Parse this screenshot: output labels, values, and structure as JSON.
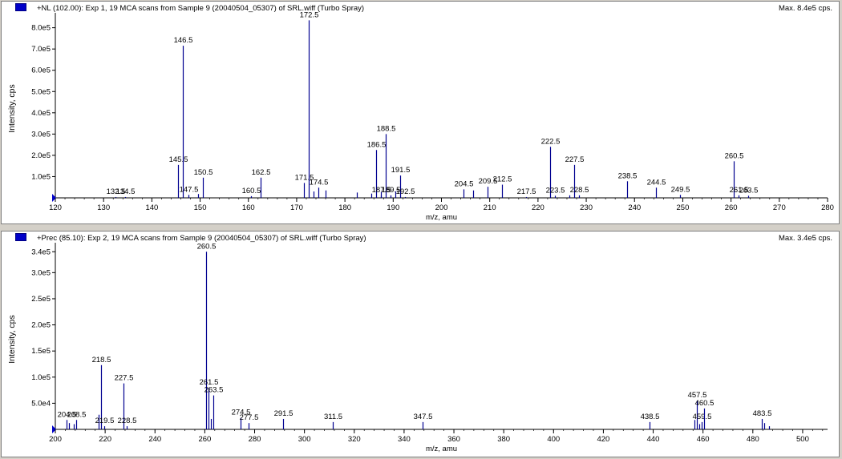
{
  "panels": [
    {
      "title": "+NL (102.00): Exp 1, 19 MCA scans from Sample 9 (20040504_05307) of SRL.wiff (Turbo Spray)",
      "max": "Max. 8.4e5 cps."
    },
    {
      "title": "+Prec (85.10): Exp 2, 19 MCA scans from Sample 9 (20040504_05307) of SRL.wiff (Turbo Spray)",
      "max": "Max. 3.4e5 cps."
    }
  ],
  "colors": {
    "peak": "#000090",
    "axis": "#000000",
    "marker": "#0000c8"
  },
  "chart_data": [
    {
      "type": "bar",
      "xlabel": "m/z, amu",
      "ylabel": "Intensity, cps",
      "xlim": [
        120,
        280
      ],
      "ylim": [
        0,
        840000
      ],
      "xticks": [
        120,
        130,
        140,
        150,
        160,
        170,
        180,
        190,
        200,
        210,
        220,
        230,
        240,
        250,
        260,
        270,
        280
      ],
      "yticks": [
        {
          "value": 100000,
          "label": "1.0e5"
        },
        {
          "value": 200000,
          "label": "2.0e5"
        },
        {
          "value": 300000,
          "label": "3.0e5"
        },
        {
          "value": 400000,
          "label": "4.0e5"
        },
        {
          "value": 500000,
          "label": "5.0e5"
        },
        {
          "value": 600000,
          "label": "6.0e5"
        },
        {
          "value": 700000,
          "label": "7.0e5"
        },
        {
          "value": 800000,
          "label": "8.0e5"
        }
      ],
      "peaks": [
        {
          "x": 132.5,
          "y": 4000,
          "label": "132.5"
        },
        {
          "x": 134.5,
          "y": 4000,
          "label": "134.5"
        },
        {
          "x": 145.5,
          "y": 155000,
          "label": "145.5"
        },
        {
          "x": 146.5,
          "y": 715000,
          "label": "146.5"
        },
        {
          "x": 147.5,
          "y": 14000,
          "label": "147.5"
        },
        {
          "x": 149.5,
          "y": 18000,
          "label": ""
        },
        {
          "x": 150.5,
          "y": 95000,
          "label": "150.5"
        },
        {
          "x": 160.5,
          "y": 8000,
          "label": "160.5"
        },
        {
          "x": 162.5,
          "y": 95000,
          "label": "162.5"
        },
        {
          "x": 171.5,
          "y": 70000,
          "label": "171.5"
        },
        {
          "x": 172.5,
          "y": 835000,
          "label": "172.5"
        },
        {
          "x": 173.5,
          "y": 30000,
          "label": ""
        },
        {
          "x": 174.5,
          "y": 48000,
          "label": "174.5"
        },
        {
          "x": 176.0,
          "y": 35000,
          "label": ""
        },
        {
          "x": 182.5,
          "y": 25000,
          "label": ""
        },
        {
          "x": 185.5,
          "y": 20000,
          "label": ""
        },
        {
          "x": 186.5,
          "y": 225000,
          "label": "186.5"
        },
        {
          "x": 187.5,
          "y": 28000,
          "label": ""
        },
        {
          "x": 188.5,
          "y": 300000,
          "label": "188.5"
        },
        {
          "x": 189.5,
          "y": 12000,
          "label": "189.5"
        },
        {
          "x": 190.5,
          "y": 30000,
          "label": ""
        },
        {
          "x": 191.5,
          "y": 105000,
          "label": "191.5"
        },
        {
          "x": 187.5,
          "y": 12000,
          "label": "187.5"
        },
        {
          "x": 192.5,
          "y": 4000,
          "label": "192.5"
        },
        {
          "x": 204.5,
          "y": 40000,
          "label": "204.5"
        },
        {
          "x": 206.5,
          "y": 35000,
          "label": ""
        },
        {
          "x": 209.5,
          "y": 52000,
          "label": "209.5"
        },
        {
          "x": 212.5,
          "y": 62000,
          "label": "212.5"
        },
        {
          "x": 217.5,
          "y": 4000,
          "label": "217.5"
        },
        {
          "x": 222.5,
          "y": 240000,
          "label": "222.5"
        },
        {
          "x": 223.5,
          "y": 10000,
          "label": "223.5"
        },
        {
          "x": 226.5,
          "y": 12000,
          "label": ""
        },
        {
          "x": 227.5,
          "y": 155000,
          "label": "227.5"
        },
        {
          "x": 228.5,
          "y": 12000,
          "label": "228.5"
        },
        {
          "x": 238.5,
          "y": 78000,
          "label": "238.5"
        },
        {
          "x": 244.5,
          "y": 48000,
          "label": "244.5"
        },
        {
          "x": 249.5,
          "y": 14000,
          "label": "249.5"
        },
        {
          "x": 260.5,
          "y": 172000,
          "label": "260.5"
        },
        {
          "x": 261.5,
          "y": 12000,
          "label": "261.5"
        },
        {
          "x": 263.5,
          "y": 10000,
          "label": "263.5"
        }
      ]
    },
    {
      "type": "bar",
      "xlabel": "m/z, amu",
      "ylabel": "Intensity, cps",
      "xlim": [
        200,
        510
      ],
      "ylim": [
        0,
        345000
      ],
      "xticks": [
        200,
        220,
        240,
        260,
        280,
        300,
        320,
        340,
        360,
        380,
        400,
        420,
        440,
        460,
        480,
        500
      ],
      "yticks": [
        {
          "value": 50000,
          "label": "5.0e4"
        },
        {
          "value": 100000,
          "label": "1.0e5"
        },
        {
          "value": 150000,
          "label": "1.5e5"
        },
        {
          "value": 200000,
          "label": "2.0e5"
        },
        {
          "value": 250000,
          "label": "2.5e5"
        },
        {
          "value": 300000,
          "label": "3.0e5"
        },
        {
          "value": 340000,
          "label": "3.4e5"
        }
      ],
      "peaks": [
        {
          "x": 204.5,
          "y": 18000,
          "label": "204.5"
        },
        {
          "x": 205.5,
          "y": 12000,
          "label": ""
        },
        {
          "x": 207.5,
          "y": 10000,
          "label": ""
        },
        {
          "x": 208.5,
          "y": 18000,
          "label": "208.5"
        },
        {
          "x": 217.5,
          "y": 28000,
          "label": ""
        },
        {
          "x": 218.5,
          "y": 123000,
          "label": "218.5"
        },
        {
          "x": 219.5,
          "y": 6000,
          "label": "219.5"
        },
        {
          "x": 227.5,
          "y": 88000,
          "label": "227.5"
        },
        {
          "x": 228.5,
          "y": 6000,
          "label": "228.5"
        },
        {
          "x": 260.5,
          "y": 340000,
          "label": "260.5"
        },
        {
          "x": 261.5,
          "y": 80000,
          "label": "261.5"
        },
        {
          "x": 262.5,
          "y": 20000,
          "label": ""
        },
        {
          "x": 263.5,
          "y": 65000,
          "label": "263.5"
        },
        {
          "x": 274.5,
          "y": 22000,
          "label": "274.5"
        },
        {
          "x": 277.5,
          "y": 12000,
          "label": "277.5"
        },
        {
          "x": 291.5,
          "y": 20000,
          "label": "291.5"
        },
        {
          "x": 311.5,
          "y": 14000,
          "label": "311.5"
        },
        {
          "x": 347.5,
          "y": 14000,
          "label": "347.5"
        },
        {
          "x": 438.5,
          "y": 14000,
          "label": "438.5"
        },
        {
          "x": 456.5,
          "y": 18000,
          "label": ""
        },
        {
          "x": 457.5,
          "y": 55000,
          "label": "457.5"
        },
        {
          "x": 458.5,
          "y": 10000,
          "label": ""
        },
        {
          "x": 459.5,
          "y": 14000,
          "label": "459.5"
        },
        {
          "x": 460.5,
          "y": 40000,
          "label": "460.5"
        },
        {
          "x": 483.5,
          "y": 20000,
          "label": "483.5"
        },
        {
          "x": 484.5,
          "y": 12000,
          "label": ""
        },
        {
          "x": 486.5,
          "y": 6000,
          "label": ""
        }
      ]
    }
  ]
}
